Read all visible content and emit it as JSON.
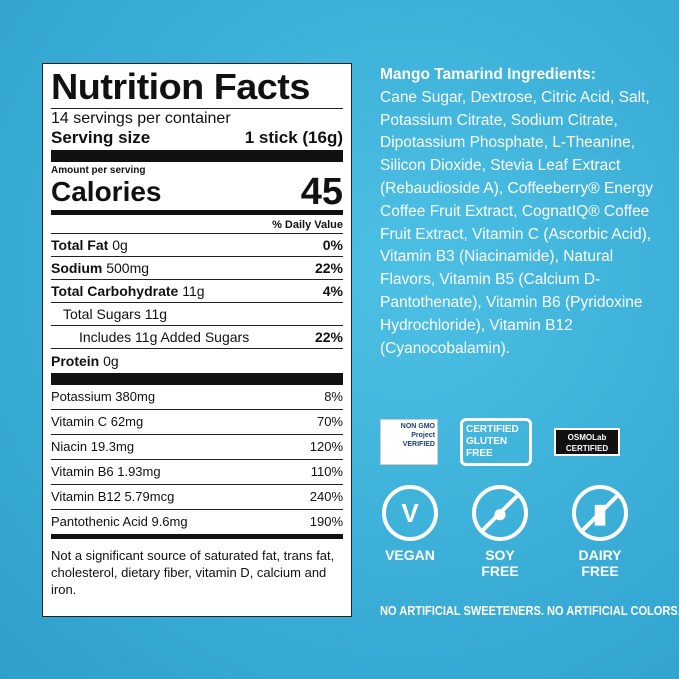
{
  "label": {
    "title": "Nutrition Facts",
    "servings": "14 servings per container",
    "serving_size_label": "Serving size",
    "serving_size": "1 stick (16g)",
    "amount": "Amount per serving",
    "calories_label": "Calories",
    "calories": "45",
    "dv": "% Daily Value",
    "nutrients": [
      {
        "name": "Total Fat",
        "amount": "0g",
        "dv": "0%"
      },
      {
        "name": "Sodium",
        "amount": "500mg",
        "dv": "22%"
      },
      {
        "name": "Total Carbohydrate",
        "amount": "11g",
        "dv": "4%"
      },
      {
        "name": "Total Sugars 11g",
        "amount": "",
        "dv": ""
      },
      {
        "name": "Includes 11g Added Sugars",
        "amount": "",
        "dv": "22%"
      },
      {
        "name": "Protein",
        "amount": "0g",
        "dv": ""
      }
    ],
    "vitamins": [
      {
        "name": "Potassium 380mg",
        "dv": "8%"
      },
      {
        "name": "Vitamin C 62mg",
        "dv": "70%"
      },
      {
        "name": "Niacin 19.3mg",
        "dv": "120%"
      },
      {
        "name": "Vitamin B6 1.93mg",
        "dv": "110%"
      },
      {
        "name": "Vitamin B12 5.79mcg",
        "dv": "240%"
      },
      {
        "name": "Pantothenic Acid 9.6mg",
        "dv": "190%"
      }
    ],
    "footnote": "Not a significant source of saturated fat, trans fat, cholesterol, dietary fiber, vitamin D, calcium and iron."
  },
  "ingredients": {
    "title": "Mango Tamarind Ingredients:",
    "text": "Cane Sugar, Dextrose, Citric Acid, Salt, Potassium Citrate, Sodium Citrate, Dipotassium Phosphate, L-Theanine, Silicon Dioxide, Stevia Leaf Extract (Rebaudioside A), Coffeeberry® Energy Coffee Fruit Extract, CognatIQ® Coffee Fruit Extract, Vitamin C (Ascorbic Acid), Vitamin B3 (Niacinamide), Natural Flavors, Vitamin B5 (Calcium D-Pantothenate), Vitamin B6 (Pyridoxine Hydrochloride), Vitamin B12 (Cyanocobalamin)."
  },
  "badges": {
    "nongmo": "NON GMO Project VERIFIED",
    "gluten": "CERTIFIED GLUTEN FREE",
    "osmo": "OSMOLab CERTIFIED"
  },
  "icons": [
    {
      "label": "VEGAN"
    },
    {
      "label": "SOY FREE"
    },
    {
      "label": "DAIRY FREE"
    }
  ],
  "claim": "NO ARTIFICIAL SWEETENERS. NO ARTIFICIAL COLORS.",
  "colors": {
    "background": "#3aaed6"
  }
}
